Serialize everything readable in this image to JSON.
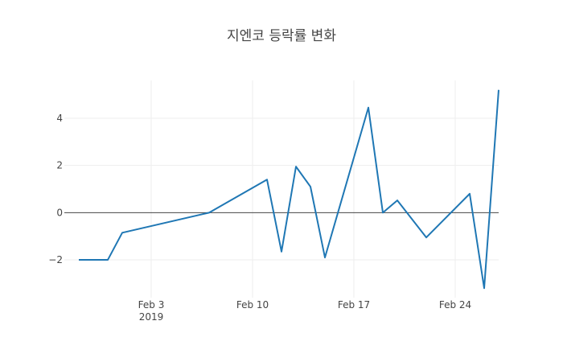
{
  "chart_data": {
    "type": "line",
    "title": "지엔코 등락률 변화",
    "xlabel": "",
    "ylabel": "",
    "x_axis_type": "date",
    "xlim": [
      "2019-01-28",
      "2019-02-27"
    ],
    "ylim": [
      -3.6,
      5.6
    ],
    "x_ticks": [
      {
        "date": "2019-02-03",
        "label": "Feb 3",
        "sublabel": "2019"
      },
      {
        "date": "2019-02-10",
        "label": "Feb 10",
        "sublabel": ""
      },
      {
        "date": "2019-02-17",
        "label": "Feb 17",
        "sublabel": ""
      },
      {
        "date": "2019-02-24",
        "label": "Feb 24",
        "sublabel": ""
      }
    ],
    "y_ticks": [
      {
        "value": -2,
        "label": "−2"
      },
      {
        "value": 0,
        "label": "0"
      },
      {
        "value": 2,
        "label": "2"
      },
      {
        "value": 4,
        "label": "4"
      }
    ],
    "grid": true,
    "zero_line": true,
    "series": [
      {
        "line_color": "#1f77b4",
        "points": [
          {
            "x": "2019-01-29",
            "y": -2.0
          },
          {
            "x": "2019-01-30",
            "y": -2.0
          },
          {
            "x": "2019-01-31",
            "y": -2.0
          },
          {
            "x": "2019-02-01",
            "y": -0.85
          },
          {
            "x": "2019-02-07",
            "y": 0.0
          },
          {
            "x": "2019-02-11",
            "y": 1.4
          },
          {
            "x": "2019-02-12",
            "y": -1.65
          },
          {
            "x": "2019-02-13",
            "y": 1.95
          },
          {
            "x": "2019-02-14",
            "y": 1.1
          },
          {
            "x": "2019-02-15",
            "y": -1.9
          },
          {
            "x": "2019-02-18",
            "y": 4.45
          },
          {
            "x": "2019-02-19",
            "y": 0.0
          },
          {
            "x": "2019-02-20",
            "y": 0.52
          },
          {
            "x": "2019-02-22",
            "y": -1.05
          },
          {
            "x": "2019-02-25",
            "y": 0.8
          },
          {
            "x": "2019-02-26",
            "y": -3.2
          },
          {
            "x": "2019-02-27",
            "y": 5.2
          }
        ]
      }
    ]
  }
}
